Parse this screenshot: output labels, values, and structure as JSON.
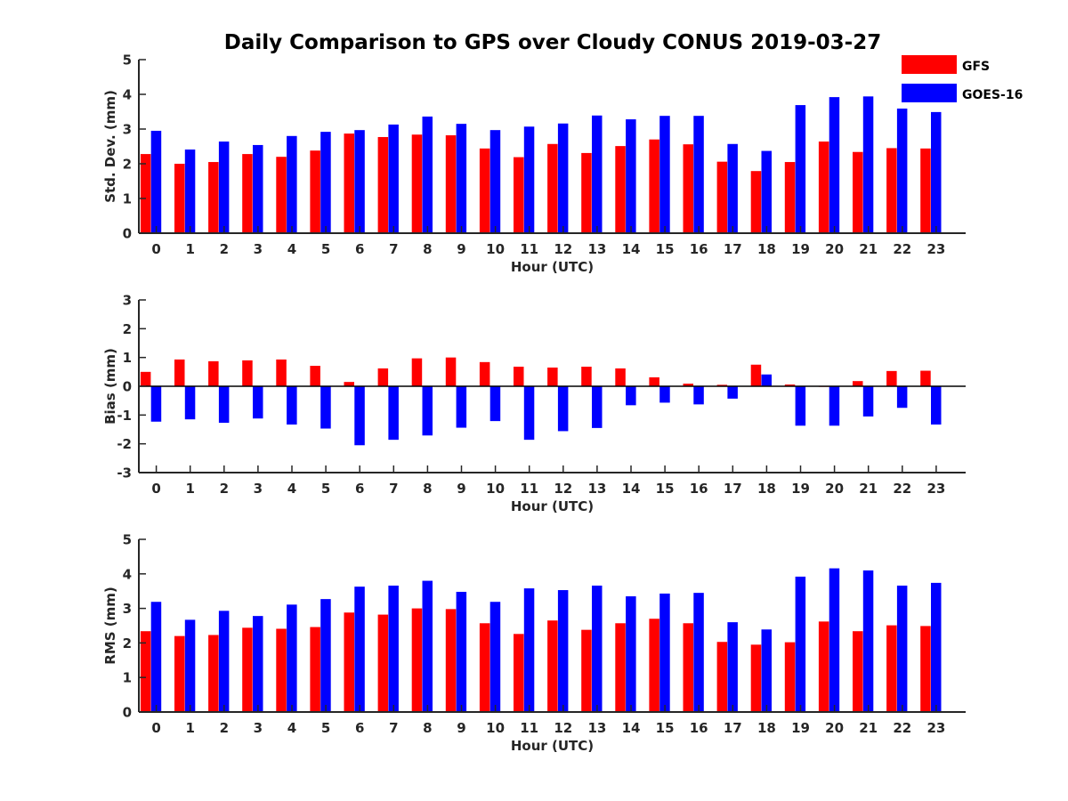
{
  "title": "Daily Comparison to GPS over Cloudy CONUS 2019-03-27",
  "legend": [
    {
      "name": "GFS",
      "color": "#ff0000"
    },
    {
      "name": "GOES-16",
      "color": "#0000ff"
    }
  ],
  "chart_data": [
    {
      "type": "bar",
      "xlabel": "Hour (UTC)",
      "ylabel": "Std. Dev. (mm)",
      "ylim": [
        0,
        5
      ],
      "yticks": [
        0,
        1,
        2,
        3,
        4,
        5
      ],
      "categories": [
        "0",
        "1",
        "2",
        "3",
        "4",
        "5",
        "6",
        "7",
        "8",
        "9",
        "10",
        "11",
        "12",
        "13",
        "14",
        "15",
        "16",
        "17",
        "18",
        "19",
        "20",
        "21",
        "22",
        "23"
      ],
      "series": [
        {
          "name": "GFS",
          "color": "#ff0000",
          "values": [
            2.28,
            2.0,
            2.05,
            2.28,
            2.2,
            2.38,
            2.87,
            2.77,
            2.84,
            2.82,
            2.44,
            2.19,
            2.57,
            2.31,
            2.51,
            2.7,
            2.56,
            2.06,
            1.79,
            2.05,
            2.64,
            2.34,
            2.45,
            2.44
          ]
        },
        {
          "name": "GOES-16",
          "color": "#0000ff",
          "values": [
            2.95,
            2.41,
            2.64,
            2.54,
            2.8,
            2.92,
            2.97,
            3.13,
            3.36,
            3.15,
            2.97,
            3.07,
            3.16,
            3.39,
            3.28,
            3.38,
            3.38,
            2.57,
            2.37,
            3.69,
            3.92,
            3.94,
            3.59,
            3.49
          ]
        }
      ]
    },
    {
      "type": "bar",
      "xlabel": "Hour (UTC)",
      "ylabel": "Bias (mm)",
      "ylim": [
        -3,
        3
      ],
      "yticks": [
        -3,
        -2,
        -1,
        0,
        1,
        2,
        3
      ],
      "categories": [
        "0",
        "1",
        "2",
        "3",
        "4",
        "5",
        "6",
        "7",
        "8",
        "9",
        "10",
        "11",
        "12",
        "13",
        "14",
        "15",
        "16",
        "17",
        "18",
        "19",
        "20",
        "21",
        "22",
        "23"
      ],
      "series": [
        {
          "name": "GFS",
          "color": "#ff0000",
          "values": [
            0.5,
            0.93,
            0.87,
            0.9,
            0.93,
            0.71,
            0.15,
            0.62,
            0.97,
            1.0,
            0.84,
            0.68,
            0.65,
            0.68,
            0.62,
            0.31,
            0.09,
            0.05,
            0.75,
            0.06,
            -0.02,
            0.18,
            0.53,
            0.54
          ]
        },
        {
          "name": "GOES-16",
          "color": "#0000ff",
          "values": [
            -1.23,
            -1.15,
            -1.27,
            -1.12,
            -1.33,
            -1.47,
            -2.05,
            -1.86,
            -1.71,
            -1.44,
            -1.21,
            -1.86,
            -1.56,
            -1.45,
            -0.66,
            -0.57,
            -0.63,
            -0.43,
            0.41,
            -1.37,
            -1.37,
            -1.05,
            -0.75,
            -1.33
          ]
        }
      ]
    },
    {
      "type": "bar",
      "xlabel": "Hour (UTC)",
      "ylabel": "RMS (mm)",
      "ylim": [
        0,
        5
      ],
      "yticks": [
        0,
        1,
        2,
        3,
        4,
        5
      ],
      "categories": [
        "0",
        "1",
        "2",
        "3",
        "4",
        "5",
        "6",
        "7",
        "8",
        "9",
        "10",
        "11",
        "12",
        "13",
        "14",
        "15",
        "16",
        "17",
        "18",
        "19",
        "20",
        "21",
        "22",
        "23"
      ],
      "series": [
        {
          "name": "GFS",
          "color": "#ff0000",
          "values": [
            2.34,
            2.2,
            2.23,
            2.44,
            2.41,
            2.46,
            2.88,
            2.82,
            3.0,
            2.98,
            2.57,
            2.26,
            2.65,
            2.38,
            2.57,
            2.7,
            2.57,
            2.03,
            1.95,
            2.02,
            2.62,
            2.34,
            2.51,
            2.49
          ]
        },
        {
          "name": "GOES-16",
          "color": "#0000ff",
          "values": [
            3.19,
            2.67,
            2.93,
            2.78,
            3.11,
            3.27,
            3.63,
            3.66,
            3.8,
            3.48,
            3.19,
            3.58,
            3.53,
            3.66,
            3.35,
            3.43,
            3.45,
            2.6,
            2.39,
            3.92,
            4.16,
            4.1,
            3.66,
            3.74
          ]
        }
      ]
    }
  ]
}
